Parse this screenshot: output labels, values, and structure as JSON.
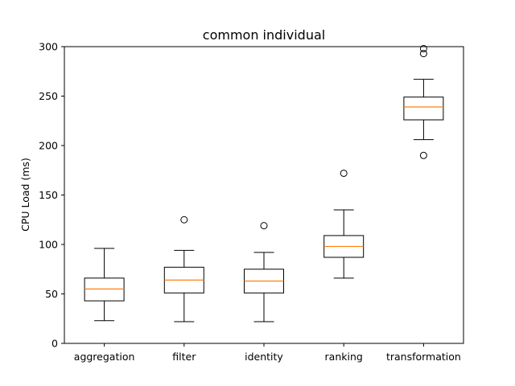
{
  "chart_data": {
    "type": "box",
    "title": "common individual",
    "xlabel": "",
    "ylabel": "CPU Load (ms)",
    "ylim": [
      0,
      300
    ],
    "yticks": [
      0,
      50,
      100,
      150,
      200,
      250,
      300
    ],
    "categories": [
      "aggregation",
      "filter",
      "identity",
      "ranking",
      "transformation"
    ],
    "boxes": [
      {
        "category": "aggregation",
        "whisker_low": 23,
        "q1": 43,
        "median": 55,
        "q3": 66,
        "whisker_high": 96,
        "outliers": []
      },
      {
        "category": "filter",
        "whisker_low": 22,
        "q1": 51,
        "median": 64,
        "q3": 77,
        "whisker_high": 94,
        "outliers": [
          125
        ]
      },
      {
        "category": "identity",
        "whisker_low": 22,
        "q1": 51,
        "median": 63,
        "q3": 75,
        "whisker_high": 92,
        "outliers": [
          119
        ]
      },
      {
        "category": "ranking",
        "whisker_low": 66,
        "q1": 87,
        "median": 98,
        "q3": 109,
        "whisker_high": 135,
        "outliers": [
          172
        ]
      },
      {
        "category": "transformation",
        "whisker_low": 206,
        "q1": 226,
        "median": 239,
        "q3": 249,
        "whisker_high": 267,
        "outliers": [
          190,
          293,
          298
        ]
      }
    ],
    "colors": {
      "box": "#000000",
      "median": "#ff7f0e",
      "outlier": "#000000"
    },
    "grid": false,
    "legend": "none"
  }
}
